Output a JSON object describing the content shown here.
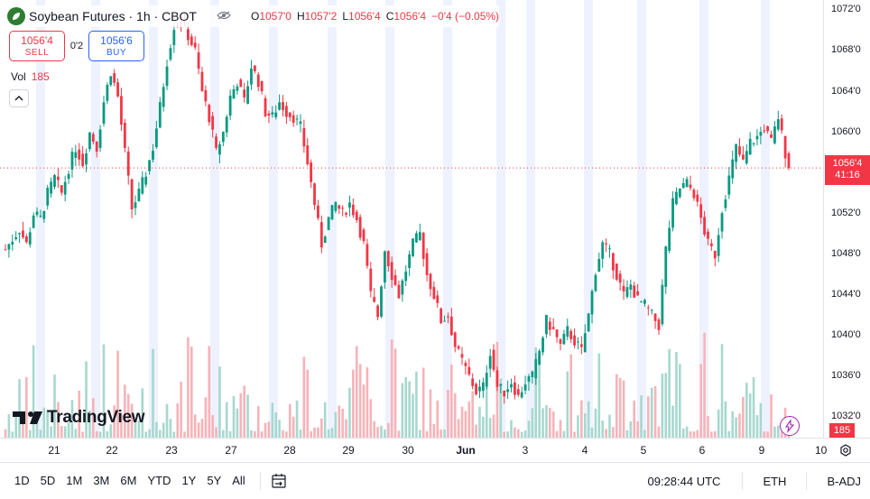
{
  "legend": {
    "title": "Soybean Futures · 1h · CBOT",
    "ohlc": [
      {
        "k": "O",
        "v": "1057'0"
      },
      {
        "k": "H",
        "v": "1057'2"
      },
      {
        "k": "L",
        "v": "1056'4"
      },
      {
        "k": "C",
        "v": "1056'4"
      }
    ],
    "change": "−0'4 (−0.05%)"
  },
  "trade": {
    "sell_price": "1056'4",
    "sell_label": "SELL",
    "spread": "0'2",
    "buy_price": "1056'6",
    "buy_label": "BUY"
  },
  "volume": {
    "label": "Vol",
    "value": "185"
  },
  "brand": {
    "name": "TradingView"
  },
  "price_axis": {
    "labels": [
      "1072'0",
      "1068'0",
      "1064'0",
      "1060'0",
      "1056'0",
      "1052'0",
      "1048'0",
      "1044'0",
      "1040'0",
      "1036'0",
      "1032'0"
    ],
    "current_price": "1056'4",
    "countdown": "41:16",
    "current_volume": "185"
  },
  "time_axis": {
    "labels": [
      "21",
      "22",
      "23",
      "27",
      "28",
      "29",
      "30",
      "Jun",
      "3",
      "4",
      "5",
      "6",
      "9",
      "10"
    ]
  },
  "bottom_bar": {
    "ranges": [
      "1D",
      "5D",
      "1M",
      "3M",
      "6M",
      "YTD",
      "1Y",
      "5Y",
      "All"
    ],
    "clock": "09:28:44 UTC",
    "session": "ETH",
    "adjust": "B-ADJ"
  },
  "colors": {
    "up": "#089981",
    "down": "#f23645",
    "session_band": "#eef2ff",
    "up_volume": "#a7d8cf",
    "down_volume": "#f7b3b8",
    "price_line": "#f23645"
  },
  "chart_data": {
    "type": "candlestick",
    "ylim": [
      1030,
      1073
    ],
    "current_price": 1056.5,
    "price_path": [
      [
        0,
        1048.5
      ],
      [
        2,
        1049.5
      ],
      [
        4,
        1050.5
      ],
      [
        6,
        1049.0
      ],
      [
        8,
        1052.0
      ],
      [
        10,
        1051.5
      ],
      [
        12,
        1054.0
      ],
      [
        14,
        1055.5
      ],
      [
        16,
        1054.0
      ],
      [
        18,
        1056.5
      ],
      [
        20,
        1058.5
      ],
      [
        22,
        1057.0
      ],
      [
        24,
        1060.0
      ],
      [
        26,
        1058.5
      ],
      [
        28,
        1063.0
      ],
      [
        30,
        1066.0
      ],
      [
        32,
        1063.5
      ],
      [
        34,
        1058.0
      ],
      [
        36,
        1052.5
      ],
      [
        38,
        1054.0
      ],
      [
        40,
        1056.0
      ],
      [
        42,
        1058.5
      ],
      [
        44,
        1062.5
      ],
      [
        46,
        1067.0
      ],
      [
        48,
        1070.5
      ],
      [
        50,
        1071.0
      ],
      [
        52,
        1069.5
      ],
      [
        54,
        1068.0
      ],
      [
        56,
        1064.0
      ],
      [
        58,
        1061.5
      ],
      [
        60,
        1058.0
      ],
      [
        62,
        1060.0
      ],
      [
        64,
        1063.5
      ],
      [
        66,
        1065.0
      ],
      [
        68,
        1063.0
      ],
      [
        70,
        1066.5
      ],
      [
        72,
        1065.0
      ],
      [
        74,
        1062.0
      ],
      [
        76,
        1061.5
      ],
      [
        78,
        1063.0
      ],
      [
        80,
        1062.0
      ],
      [
        82,
        1061.5
      ],
      [
        84,
        1060.5
      ],
      [
        86,
        1057.0
      ],
      [
        88,
        1053.0
      ],
      [
        90,
        1049.0
      ],
      [
        92,
        1051.5
      ],
      [
        94,
        1053.0
      ],
      [
        96,
        1052.0
      ],
      [
        98,
        1053.0
      ],
      [
        100,
        1051.5
      ],
      [
        102,
        1049.0
      ],
      [
        104,
        1044.0
      ],
      [
        106,
        1042.0
      ],
      [
        108,
        1048.5
      ],
      [
        110,
        1046.0
      ],
      [
        112,
        1044.0
      ],
      [
        114,
        1046.5
      ],
      [
        116,
        1049.0
      ],
      [
        118,
        1050.0
      ],
      [
        120,
        1046.0
      ],
      [
        122,
        1044.0
      ],
      [
        124,
        1041.5
      ],
      [
        126,
        1042.0
      ],
      [
        128,
        1039.0
      ],
      [
        130,
        1037.5
      ],
      [
        132,
        1036.0
      ],
      [
        134,
        1034.5
      ],
      [
        136,
        1035.0
      ],
      [
        138,
        1038.5
      ],
      [
        140,
        1035.0
      ],
      [
        142,
        1034.5
      ],
      [
        144,
        1035.5
      ],
      [
        146,
        1034.0
      ],
      [
        148,
        1035.5
      ],
      [
        150,
        1036.0
      ],
      [
        152,
        1038.5
      ],
      [
        154,
        1041.5
      ],
      [
        156,
        1040.5
      ],
      [
        158,
        1039.0
      ],
      [
        160,
        1040.5
      ],
      [
        162,
        1039.5
      ],
      [
        164,
        1038.5
      ],
      [
        166,
        1042.0
      ],
      [
        168,
        1046.5
      ],
      [
        170,
        1049.0
      ],
      [
        172,
        1048.0
      ],
      [
        174,
        1046.0
      ],
      [
        176,
        1044.0
      ],
      [
        178,
        1045.0
      ],
      [
        180,
        1043.5
      ],
      [
        182,
        1043.0
      ],
      [
        184,
        1042.0
      ],
      [
        186,
        1041.0
      ],
      [
        188,
        1048.5
      ],
      [
        190,
        1053.0
      ],
      [
        192,
        1054.5
      ],
      [
        194,
        1055.0
      ],
      [
        196,
        1054.0
      ],
      [
        198,
        1051.5
      ],
      [
        200,
        1049.0
      ],
      [
        202,
        1048.0
      ],
      [
        204,
        1052.5
      ],
      [
        206,
        1055.5
      ],
      [
        208,
        1058.5
      ],
      [
        210,
        1057.0
      ],
      [
        212,
        1059.0
      ],
      [
        214,
        1059.5
      ],
      [
        216,
        1060.5
      ],
      [
        218,
        1059.0
      ],
      [
        220,
        1061.5
      ],
      [
        222,
        1058.0
      ],
      [
        223,
        1056.5
      ]
    ],
    "session_bands": [
      [
        40,
        50
      ],
      [
        101,
        111
      ],
      [
        165,
        175
      ],
      [
        233,
        243
      ],
      [
        298,
        308
      ],
      [
        363,
        373
      ],
      [
        427,
        437
      ],
      [
        491,
        501
      ],
      [
        550,
        560
      ],
      [
        583,
        593
      ],
      [
        647,
        657
      ],
      [
        706,
        716
      ],
      [
        775,
        785
      ],
      [
        843,
        853
      ]
    ],
    "volume_range": [
      0,
      185
    ]
  }
}
